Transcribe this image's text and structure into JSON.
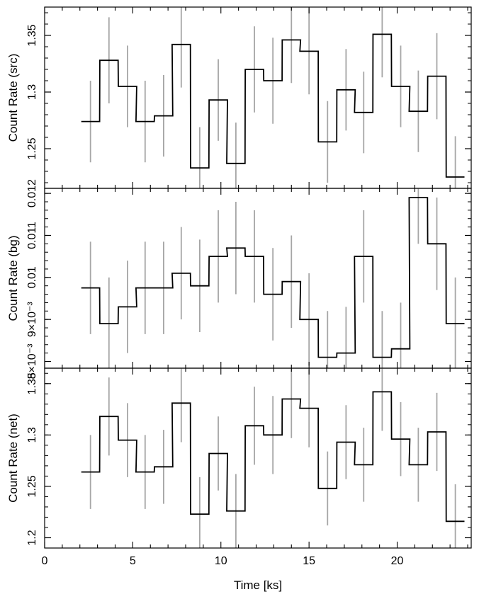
{
  "chart_data": [
    {
      "type": "step",
      "ylabel": "Count Rate (src)",
      "ylim": [
        1.215,
        1.375
      ],
      "yticks": [
        {
          "v": 1.25,
          "label": "1.25"
        },
        {
          "v": 1.3,
          "label": "1.3"
        },
        {
          "v": 1.35,
          "label": "1.35"
        }
      ],
      "y": [
        1.274,
        1.328,
        1.305,
        1.274,
        1.279,
        1.342,
        1.233,
        1.293,
        1.237,
        1.32,
        1.31,
        1.346,
        1.336,
        1.256,
        1.302,
        1.282,
        1.351,
        1.305,
        1.283,
        1.314,
        1.225
      ],
      "err": [
        0.036,
        0.038,
        0.036,
        0.036,
        0.036,
        0.038,
        0.036,
        0.036,
        0.036,
        0.038,
        0.038,
        0.038,
        0.038,
        0.036,
        0.036,
        0.036,
        0.038,
        0.036,
        0.036,
        0.038,
        0.036
      ]
    },
    {
      "type": "step",
      "ylabel": "Count Rate (bg)",
      "ylim": [
        0.00784,
        0.01212
      ],
      "yticks": [
        {
          "v": 0.008,
          "label": "8×10⁻³"
        },
        {
          "v": 0.009,
          "label": "9×10⁻³"
        },
        {
          "v": 0.01,
          "label": "0.01"
        },
        {
          "v": 0.011,
          "label": "0.011"
        },
        {
          "v": 0.012,
          "label": "0.012"
        }
      ],
      "y": [
        0.00975,
        0.0089,
        0.0093,
        0.00975,
        0.00975,
        0.0101,
        0.0098,
        0.0105,
        0.0107,
        0.0105,
        0.0096,
        0.0099,
        0.009,
        0.0081,
        0.0082,
        0.0105,
        0.0081,
        0.0083,
        0.0119,
        0.0108,
        0.0089
      ],
      "err": [
        0.0011,
        0.0011,
        0.0011,
        0.0011,
        0.0011,
        0.0011,
        0.0011,
        0.0011,
        0.0011,
        0.0011,
        0.0011,
        0.0011,
        0.0011,
        0.0011,
        0.0011,
        0.0011,
        0.0011,
        0.0011,
        0.0011,
        0.0011,
        0.0011
      ]
    },
    {
      "type": "step",
      "ylabel": "Count Rate (net)",
      "ylim": [
        1.19,
        1.365
      ],
      "yticks": [
        {
          "v": 1.2,
          "label": "1.2"
        },
        {
          "v": 1.25,
          "label": "1.25"
        },
        {
          "v": 1.3,
          "label": "1.3"
        },
        {
          "v": 1.35,
          "label": "1.35"
        }
      ],
      "y": [
        1.264,
        1.318,
        1.295,
        1.264,
        1.269,
        1.331,
        1.223,
        1.282,
        1.226,
        1.309,
        1.3,
        1.335,
        1.326,
        1.248,
        1.293,
        1.271,
        1.342,
        1.296,
        1.271,
        1.303,
        1.216
      ],
      "err": [
        0.036,
        0.038,
        0.036,
        0.036,
        0.036,
        0.038,
        0.036,
        0.036,
        0.036,
        0.038,
        0.038,
        0.038,
        0.038,
        0.036,
        0.036,
        0.036,
        0.038,
        0.036,
        0.036,
        0.038,
        0.036
      ]
    }
  ],
  "x": [
    2.6,
    3.65,
    4.7,
    5.7,
    6.75,
    7.75,
    8.8,
    9.85,
    10.85,
    11.9,
    12.95,
    14.0,
    15.0,
    16.05,
    17.1,
    18.1,
    19.15,
    20.2,
    21.2,
    22.25,
    23.3
  ],
  "bin_width": 1.04,
  "xlim": [
    0,
    24.2
  ],
  "xticks": [
    {
      "v": 0,
      "label": "0"
    },
    {
      "v": 5,
      "label": "5"
    },
    {
      "v": 10,
      "label": "10"
    },
    {
      "v": 15,
      "label": "15"
    },
    {
      "v": 20,
      "label": "20"
    }
  ],
  "xlabel": "Time [ks]",
  "colors": {
    "step": "#000000",
    "errorbar": "#a6a6a6",
    "frame": "#000000"
  }
}
